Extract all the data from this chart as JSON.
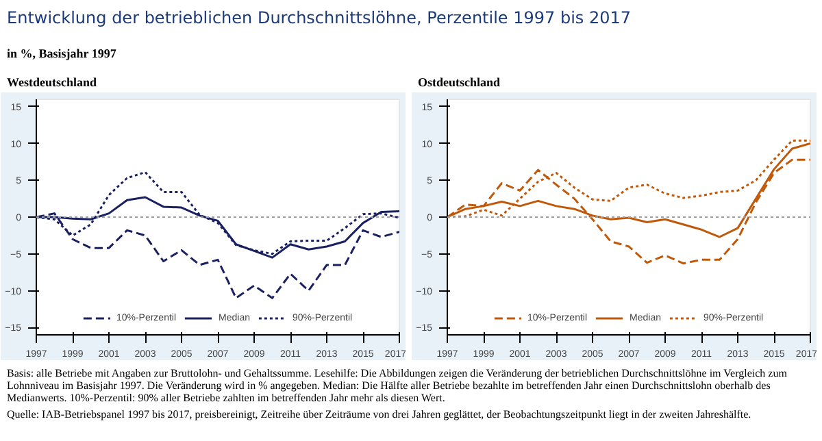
{
  "chart_data": [
    {
      "type": "line",
      "title": "Westdeutschland",
      "annotations": [
        "Entwicklung der betrieblichen Durchschnittslöhne, Perzentile 1997 bis 2017"
      ],
      "subtitle": "in %, Basisjahr 1997",
      "x": [
        1997,
        1998,
        1999,
        2000,
        2001,
        2002,
        2003,
        2004,
        2005,
        2006,
        2007,
        2008,
        2009,
        2010,
        2011,
        2012,
        2013,
        2014,
        2015,
        2016,
        2017
      ],
      "xlim": [
        1997,
        2017
      ],
      "xticks": [
        1997,
        1999,
        2001,
        2003,
        2005,
        2007,
        2009,
        2011,
        2013,
        2015,
        2017
      ],
      "ylim": [
        -16,
        16
      ],
      "yticks": [
        -15,
        -10,
        -5,
        0,
        5,
        10,
        15
      ],
      "ref_lines": [
        {
          "axis": "y",
          "value": 0,
          "color": "#a0a0a0",
          "line_style": "dotted"
        }
      ],
      "legend": "bottom",
      "series": [
        {
          "name": "10%-Perzentil",
          "color": "#1a2060",
          "line_style": "dashed",
          "values": [
            0,
            0.5,
            -3,
            -4.2,
            -4.2,
            -1.8,
            -2.5,
            -6,
            -4.5,
            -6.5,
            -5.8,
            -11,
            -9.3,
            -11,
            -7.7,
            -10,
            -6.5,
            -6.5,
            -1.8,
            -2.7,
            -2
          ]
        },
        {
          "name": "Median",
          "color": "#1a2060",
          "line_style": "solid",
          "values": [
            0,
            0,
            -0.2,
            -0.3,
            0.5,
            2.3,
            2.7,
            1.4,
            1.3,
            0.2,
            -0.5,
            -3.7,
            -4.6,
            -5.5,
            -3.7,
            -4.4,
            -4,
            -3.3,
            -0.8,
            0.7,
            0.8
          ]
        },
        {
          "name": "90%-Perzentil",
          "color": "#1a2060",
          "line_style": "dotted",
          "values": [
            0,
            -0.3,
            -2.5,
            -1,
            3,
            5.3,
            6.1,
            3.4,
            3.4,
            0.3,
            -0.8,
            -3.8,
            -4.5,
            -5,
            -3.3,
            -3.2,
            -3.2,
            -1.5,
            0.4,
            0.5,
            -0.1
          ]
        }
      ]
    },
    {
      "type": "line",
      "title": "Ostdeutschland",
      "x": [
        1997,
        1998,
        1999,
        2000,
        2001,
        2002,
        2003,
        2004,
        2005,
        2006,
        2007,
        2008,
        2009,
        2010,
        2011,
        2012,
        2013,
        2014,
        2015,
        2016,
        2017
      ],
      "xlim": [
        1997,
        2017
      ],
      "xticks": [
        1997,
        1999,
        2001,
        2003,
        2005,
        2007,
        2009,
        2011,
        2013,
        2015,
        2017
      ],
      "ylim": [
        -16,
        16
      ],
      "yticks": [
        -15,
        -10,
        -5,
        0,
        5,
        10,
        15
      ],
      "ref_lines": [
        {
          "axis": "y",
          "value": 0,
          "color": "#a0a0a0",
          "line_style": "dotted"
        }
      ],
      "legend": "bottom",
      "annotations": [
        "Basis: alle Betriebe mit Angaben zur Bruttolohn- und Gehaltssumme. Lesehilfe: Die Abbildungen zeigen die Veränderung der betrieblichen Durchschnittslöhne im Vergleich zum Lohnniveau im Basisjahr 1997. Die Veränderung wird in % angegeben. Median: Die Hälfte aller Betriebe bezahlte im betreffenden Jahr einen Durchschnittslohn oberhalb des Medianwerts. 10%-Perzentil: 90% aller Betriebe zahlten im betreffenden Jahr mehr als diesen Wert.",
        "Quelle: IAB-Betriebspanel 1997 bis 2017, preisbereinigt, Zeitreihe über Zeiträume von drei Jahren geglättet, der Beobachtungszeitpunkt liegt in der zweiten Jahreshälfte."
      ],
      "series": [
        {
          "name": "10%-Perzentil",
          "color": "#c0580a",
          "line_style": "dashed",
          "values": [
            0,
            1.7,
            1.5,
            4.6,
            3.6,
            6.4,
            4.4,
            2.5,
            -0.3,
            -3.3,
            -4,
            -6.2,
            -5.2,
            -6.3,
            -5.8,
            -5.8,
            -3,
            2,
            6,
            7.8,
            7.8
          ]
        },
        {
          "name": "Median",
          "color": "#c0580a",
          "line_style": "solid",
          "values": [
            0,
            1.1,
            1.5,
            2.1,
            1.5,
            2.2,
            1.5,
            1.1,
            0.2,
            -0.3,
            -0.1,
            -0.7,
            -0.3,
            -1,
            -1.7,
            -2.7,
            -1.5,
            2.5,
            6.5,
            9.3,
            10
          ]
        },
        {
          "name": "90%-Perzentil",
          "color": "#c0580a",
          "line_style": "dotted",
          "values": [
            0,
            0.1,
            1,
            0.2,
            2.5,
            4.8,
            6,
            4,
            2.4,
            2.2,
            4,
            4.4,
            3.2,
            2.6,
            2.9,
            3.4,
            3.6,
            5,
            7.8,
            10.4,
            10.4
          ]
        }
      ]
    }
  ]
}
